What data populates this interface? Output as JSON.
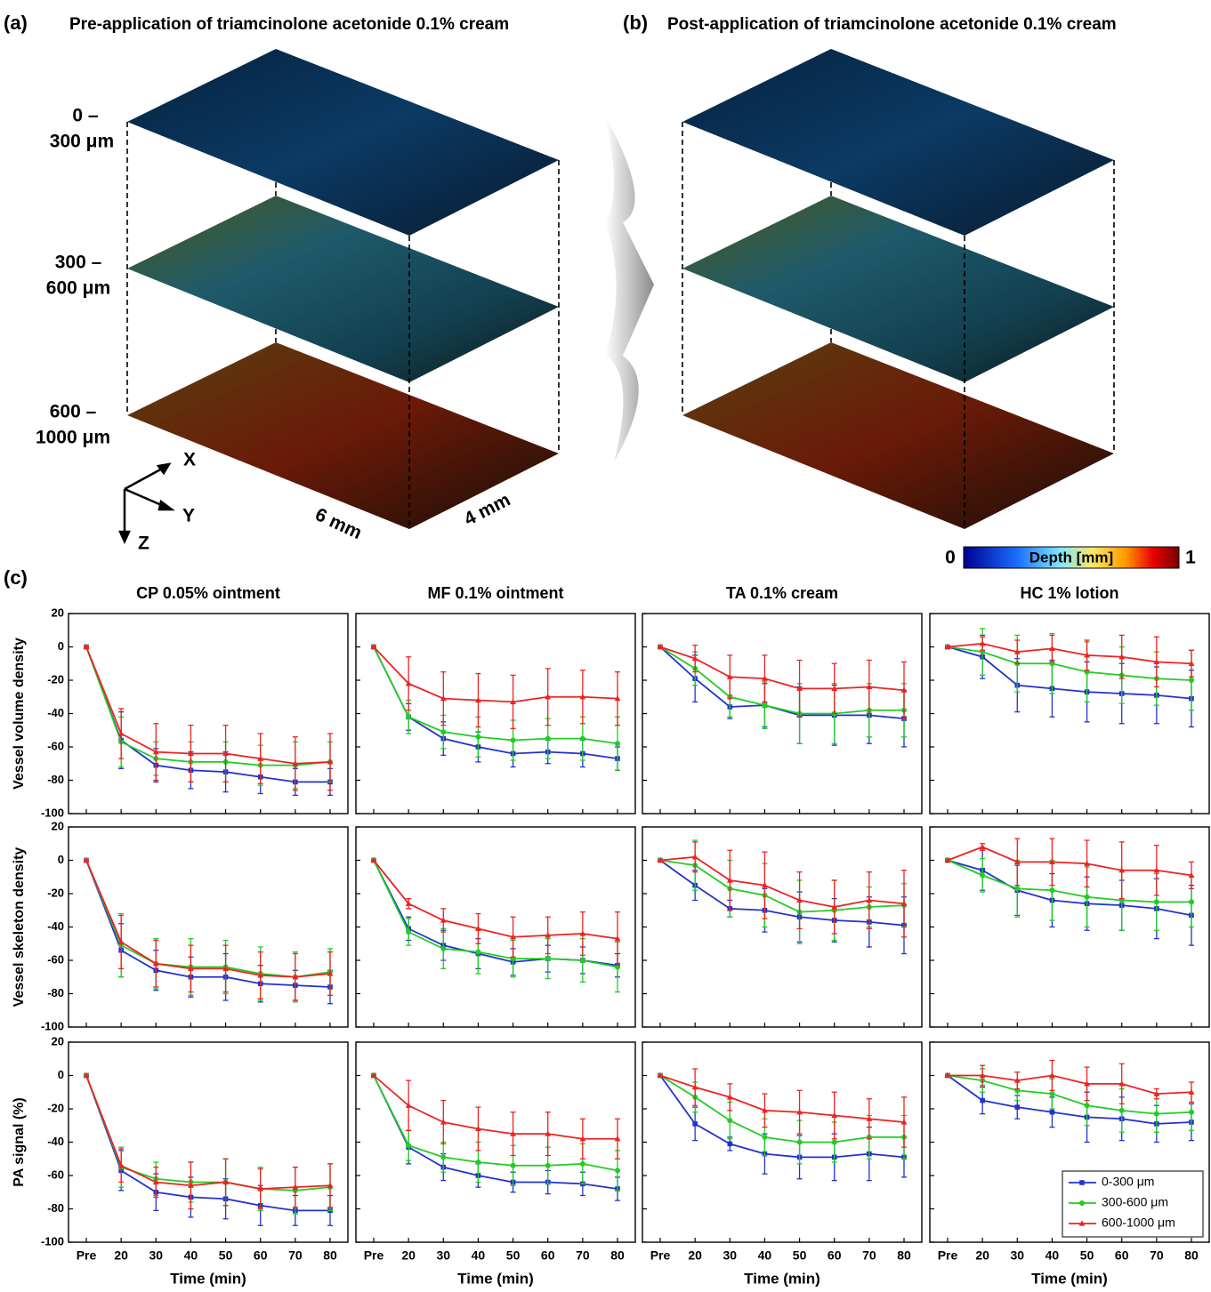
{
  "figure": {
    "panel_a": {
      "label": "(a)",
      "title": "Pre-application of triamcinolone acetonide 0.1% cream"
    },
    "panel_b": {
      "label": "(b)",
      "title": "Post-application of triamcinolone acetonide 0.1% cream"
    },
    "depth_labels": [
      [
        "0 –",
        "300 μm"
      ],
      [
        "300 –",
        "600 μm"
      ],
      [
        "600 –",
        "1000 μm"
      ]
    ],
    "axes_icon": {
      "x": "X",
      "y": "Y",
      "z": "Z"
    },
    "dimensions": {
      "length": "6 mm",
      "width": "4 mm"
    },
    "colorbar": {
      "label": "Depth [mm]",
      "lim": [
        0,
        1
      ]
    },
    "panel_c": {
      "label": "(c)"
    }
  },
  "chart_data": [
    {
      "type": "line",
      "title": "CP 0.05% ointment",
      "ylabel": "Vessel volume density",
      "ylim": [
        -100,
        20
      ],
      "yticks": [
        -100,
        -80,
        -60,
        -40,
        -20,
        0,
        20
      ],
      "series": [
        {
          "color": "#2233cc",
          "marker": "square",
          "values": [
            0,
            -56,
            -71,
            -74,
            -75,
            -78,
            -81,
            -81
          ],
          "errors": [
            0,
            17,
            10,
            11,
            12,
            10,
            8,
            8
          ]
        },
        {
          "color": "#22cc22",
          "marker": "circle",
          "values": [
            0,
            -57,
            -67,
            -69,
            -69,
            -71,
            -71,
            -69
          ],
          "errors": [
            0,
            15,
            10,
            12,
            12,
            12,
            14,
            12
          ]
        },
        {
          "color": "#ee2222",
          "marker": "triangle",
          "values": [
            0,
            -52,
            -63,
            -64,
            -64,
            -67,
            -70,
            -69
          ],
          "errors": [
            0,
            15,
            17,
            17,
            17,
            15,
            16,
            17
          ]
        }
      ]
    },
    {
      "type": "line",
      "title": "MF 0.1% ointment",
      "ylim": [
        -100,
        20
      ],
      "series": [
        {
          "color": "#2233cc",
          "marker": "square",
          "values": [
            0,
            -42,
            -55,
            -60,
            -64,
            -63,
            -64,
            -67
          ],
          "errors": [
            0,
            8,
            10,
            9,
            8,
            7,
            8,
            7
          ]
        },
        {
          "color": "#22cc22",
          "marker": "circle",
          "values": [
            0,
            -42,
            -51,
            -54,
            -56,
            -55,
            -55,
            -58
          ],
          "errors": [
            0,
            10,
            10,
            12,
            12,
            12,
            13,
            16
          ]
        },
        {
          "color": "#ee2222",
          "marker": "triangle",
          "values": [
            0,
            -22,
            -31,
            -32,
            -33,
            -30,
            -30,
            -31
          ],
          "errors": [
            0,
            16,
            16,
            16,
            16,
            17,
            16,
            16
          ]
        }
      ]
    },
    {
      "type": "line",
      "title": "TA 0.1% cream",
      "ylim": [
        -100,
        20
      ],
      "series": [
        {
          "color": "#2233cc",
          "marker": "square",
          "values": [
            0,
            -19,
            -36,
            -35,
            -41,
            -41,
            -41,
            -43
          ],
          "errors": [
            0,
            14,
            7,
            13,
            17,
            18,
            17,
            17
          ]
        },
        {
          "color": "#22cc22",
          "marker": "circle",
          "values": [
            0,
            -13,
            -30,
            -35,
            -40,
            -40,
            -38,
            -38
          ],
          "errors": [
            0,
            10,
            12,
            14,
            18,
            18,
            16,
            16
          ]
        },
        {
          "color": "#ee2222",
          "marker": "triangle",
          "values": [
            0,
            -7,
            -18,
            -19,
            -25,
            -25,
            -24,
            -26
          ],
          "errors": [
            0,
            8,
            13,
            14,
            17,
            15,
            16,
            17
          ]
        }
      ]
    },
    {
      "type": "line",
      "title": "HC 1% lotion",
      "ylim": [
        -100,
        20
      ],
      "series": [
        {
          "color": "#2233cc",
          "marker": "square",
          "values": [
            0,
            -6,
            -23,
            -25,
            -27,
            -28,
            -29,
            -31
          ],
          "errors": [
            0,
            13,
            16,
            17,
            18,
            18,
            17,
            17
          ]
        },
        {
          "color": "#22cc22",
          "marker": "circle",
          "values": [
            0,
            -3,
            -10,
            -10,
            -15,
            -17,
            -19,
            -20
          ],
          "errors": [
            0,
            14,
            17,
            18,
            18,
            17,
            16,
            18
          ]
        },
        {
          "color": "#ee2222",
          "marker": "triangle",
          "values": [
            0,
            2,
            -3,
            -1,
            -5,
            -6,
            -9,
            -10
          ],
          "errors": [
            0,
            4,
            7,
            8,
            9,
            13,
            15,
            8
          ]
        }
      ]
    },
    {
      "type": "line",
      "ylabel": "Vessel skeleton density",
      "ylim": [
        -100,
        20
      ],
      "yticks": [
        -100,
        -80,
        -60,
        -40,
        -20,
        0,
        20
      ],
      "series": [
        {
          "color": "#2233cc",
          "marker": "square",
          "values": [
            0,
            -54,
            -66,
            -70,
            -70,
            -74,
            -75,
            -76
          ],
          "errors": [
            0,
            16,
            12,
            12,
            14,
            11,
            9,
            10
          ]
        },
        {
          "color": "#22cc22",
          "marker": "circle",
          "values": [
            0,
            -51,
            -62,
            -64,
            -64,
            -68,
            -70,
            -67
          ],
          "errors": [
            0,
            19,
            15,
            17,
            16,
            16,
            15,
            14
          ]
        },
        {
          "color": "#ee2222",
          "marker": "triangle",
          "values": [
            0,
            -49,
            -62,
            -65,
            -65,
            -69,
            -70,
            -68
          ],
          "errors": [
            0,
            16,
            14,
            14,
            14,
            14,
            14,
            13
          ]
        }
      ]
    },
    {
      "type": "line",
      "ylim": [
        -100,
        20
      ],
      "series": [
        {
          "color": "#2233cc",
          "marker": "square",
          "values": [
            0,
            -41,
            -51,
            -56,
            -61,
            -59,
            -60,
            -63
          ],
          "errors": [
            0,
            7,
            9,
            9,
            8,
            8,
            8,
            7
          ]
        },
        {
          "color": "#22cc22",
          "marker": "circle",
          "values": [
            0,
            -43,
            -53,
            -55,
            -59,
            -59,
            -60,
            -64
          ],
          "errors": [
            0,
            8,
            12,
            13,
            11,
            12,
            13,
            15
          ]
        },
        {
          "color": "#ee2222",
          "marker": "triangle",
          "values": [
            0,
            -26,
            -36,
            -41,
            -46,
            -45,
            -44,
            -47
          ],
          "errors": [
            0,
            3,
            7,
            9,
            12,
            11,
            13,
            16
          ]
        }
      ]
    },
    {
      "type": "line",
      "ylim": [
        -100,
        20
      ],
      "series": [
        {
          "color": "#2233cc",
          "marker": "square",
          "values": [
            0,
            -15,
            -29,
            -30,
            -34,
            -36,
            -37,
            -39
          ],
          "errors": [
            0,
            9,
            5,
            13,
            15,
            13,
            15,
            17
          ]
        },
        {
          "color": "#22cc22",
          "marker": "circle",
          "values": [
            0,
            -3,
            -17,
            -21,
            -31,
            -30,
            -28,
            -27
          ],
          "errors": [
            0,
            15,
            17,
            19,
            19,
            18,
            12,
            13
          ]
        },
        {
          "color": "#ee2222",
          "marker": "triangle",
          "values": [
            0,
            2,
            -12,
            -15,
            -24,
            -28,
            -24,
            -26
          ],
          "errors": [
            0,
            9,
            18,
            20,
            17,
            16,
            17,
            20
          ]
        }
      ]
    },
    {
      "type": "line",
      "ylim": [
        -100,
        20
      ],
      "series": [
        {
          "color": "#2233cc",
          "marker": "square",
          "values": [
            0,
            -6,
            -18,
            -24,
            -26,
            -27,
            -29,
            -33
          ],
          "errors": [
            0,
            12,
            15,
            16,
            16,
            15,
            18,
            18
          ]
        },
        {
          "color": "#22cc22",
          "marker": "circle",
          "values": [
            0,
            -9,
            -17,
            -18,
            -22,
            -24,
            -25,
            -25
          ],
          "errors": [
            0,
            10,
            17,
            18,
            18,
            18,
            17,
            15
          ]
        },
        {
          "color": "#ee2222",
          "marker": "triangle",
          "values": [
            0,
            8,
            -1,
            -1,
            -2,
            -6,
            -6,
            -9
          ],
          "errors": [
            0,
            2,
            14,
            14,
            14,
            17,
            15,
            8
          ]
        }
      ]
    },
    {
      "type": "line",
      "ylabel": "PA signal (%)",
      "xlabel": "Time (min)",
      "categories": [
        "Pre",
        "20",
        "30",
        "40",
        "50",
        "60",
        "70",
        "80"
      ],
      "ylim": [
        -100,
        20
      ],
      "yticks": [
        -100,
        -80,
        -60,
        -40,
        -20,
        0,
        20
      ],
      "series": [
        {
          "color": "#2233cc",
          "marker": "square",
          "values": [
            0,
            -57,
            -70,
            -73,
            -74,
            -78,
            -81,
            -81
          ],
          "errors": [
            0,
            12,
            11,
            12,
            12,
            12,
            9,
            9
          ]
        },
        {
          "color": "#22cc22",
          "marker": "circle",
          "values": [
            0,
            -55,
            -62,
            -64,
            -64,
            -68,
            -69,
            -67
          ],
          "errors": [
            0,
            12,
            10,
            12,
            14,
            13,
            14,
            14
          ]
        },
        {
          "color": "#ee2222",
          "marker": "triangle",
          "values": [
            0,
            -54,
            -64,
            -66,
            -64,
            -68,
            -67,
            -66
          ],
          "errors": [
            0,
            10,
            9,
            14,
            14,
            12,
            12,
            13
          ]
        }
      ]
    },
    {
      "type": "line",
      "xlabel": "Time (min)",
      "categories": [
        "Pre",
        "20",
        "30",
        "40",
        "50",
        "60",
        "70",
        "80"
      ],
      "ylim": [
        -100,
        20
      ],
      "series": [
        {
          "color": "#2233cc",
          "marker": "square",
          "values": [
            0,
            -43,
            -55,
            -60,
            -64,
            -64,
            -65,
            -68
          ],
          "errors": [
            0,
            10,
            8,
            7,
            6,
            7,
            7,
            7
          ]
        },
        {
          "color": "#22cc22",
          "marker": "circle",
          "values": [
            0,
            -42,
            -49,
            -52,
            -54,
            -54,
            -53,
            -57
          ],
          "errors": [
            0,
            9,
            9,
            12,
            12,
            11,
            12,
            12
          ]
        },
        {
          "color": "#ee2222",
          "marker": "triangle",
          "values": [
            0,
            -18,
            -28,
            -32,
            -35,
            -35,
            -38,
            -38
          ],
          "errors": [
            0,
            15,
            13,
            13,
            13,
            13,
            12,
            12
          ]
        }
      ]
    },
    {
      "type": "line",
      "xlabel": "Time (min)",
      "categories": [
        "Pre",
        "20",
        "30",
        "40",
        "50",
        "60",
        "70",
        "80"
      ],
      "ylim": [
        -100,
        20
      ],
      "series": [
        {
          "color": "#2233cc",
          "marker": "square",
          "values": [
            0,
            -29,
            -41,
            -47,
            -49,
            -49,
            -47,
            -49
          ],
          "errors": [
            0,
            10,
            4,
            12,
            13,
            14,
            16,
            12
          ]
        },
        {
          "color": "#22cc22",
          "marker": "circle",
          "values": [
            0,
            -13,
            -27,
            -37,
            -40,
            -40,
            -37,
            -37
          ],
          "errors": [
            0,
            9,
            11,
            11,
            13,
            12,
            13,
            13
          ]
        },
        {
          "color": "#ee2222",
          "marker": "triangle",
          "values": [
            0,
            -7,
            -13,
            -21,
            -22,
            -24,
            -26,
            -28
          ],
          "errors": [
            0,
            11,
            8,
            10,
            13,
            14,
            12,
            15
          ]
        }
      ]
    },
    {
      "type": "line",
      "xlabel": "Time (min)",
      "categories": [
        "Pre",
        "20",
        "30",
        "40",
        "50",
        "60",
        "70",
        "80"
      ],
      "ylim": [
        -100,
        20
      ],
      "legend": "lower right",
      "series": [
        {
          "name": "0-300 μm",
          "color": "#2233cc",
          "marker": "square",
          "values": [
            0,
            -15,
            -19,
            -22,
            -25,
            -26,
            -29,
            -28
          ],
          "errors": [
            0,
            8,
            7,
            9,
            15,
            13,
            11,
            11
          ]
        },
        {
          "name": "300-600 μm",
          "color": "#22cc22",
          "marker": "circle",
          "values": [
            0,
            -3,
            -9,
            -11,
            -18,
            -21,
            -23,
            -22
          ],
          "errors": [
            0,
            7,
            6,
            9,
            12,
            13,
            11,
            11
          ]
        },
        {
          "name": "600-1000 μm",
          "color": "#ee2222",
          "marker": "triangle",
          "values": [
            0,
            0,
            -3,
            0,
            -5,
            -5,
            -11,
            -10
          ],
          "errors": [
            0,
            6,
            5,
            9,
            10,
            12,
            3,
            6
          ]
        }
      ]
    }
  ]
}
